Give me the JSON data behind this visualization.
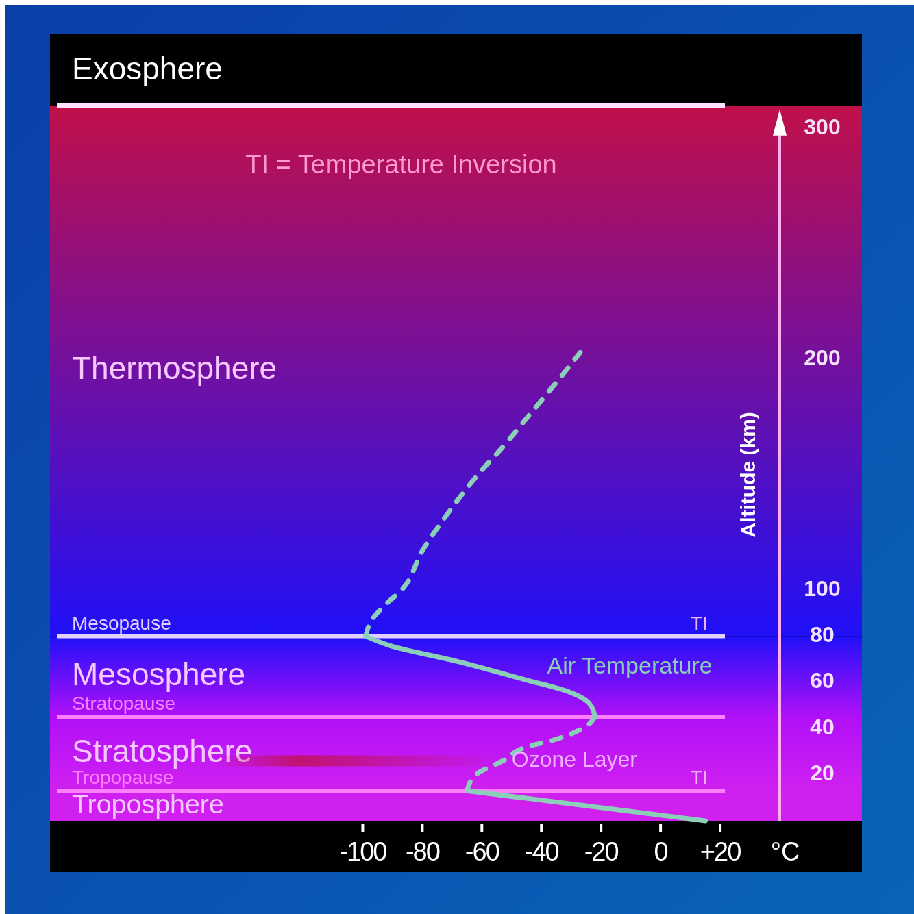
{
  "chart_data": {
    "type": "line",
    "xlabel": "°C",
    "ylabel": "Altitude (km)",
    "xlim": [
      -205,
      40
    ],
    "xticks": [
      -100,
      -80,
      -60,
      -40,
      -20,
      0,
      {
        "value": 20,
        "label": "+20"
      }
    ],
    "ylim": [
      0,
      340
    ],
    "yticks": [
      20,
      40,
      60,
      80,
      100,
      200,
      300
    ],
    "series": [
      {
        "color": "#8ccfb8",
        "line_style": "solid",
        "x": [
          15,
          -65
        ],
        "values": [
          0,
          13
        ]
      },
      {
        "color": "#8ccfb8",
        "line_style": "dashed",
        "x": [
          -65,
          -62,
          -53,
          -45,
          -36,
          -25,
          -22
        ],
        "values": [
          13,
          20,
          26,
          32,
          35,
          41,
          45
        ]
      },
      {
        "name": "Air Temperature",
        "color": "#8ccfb8",
        "line_style": "solid",
        "x": [
          -22,
          -24,
          -31,
          -45,
          -68,
          -91,
          -99
        ],
        "values": [
          45,
          51,
          56,
          61,
          69,
          76,
          80
        ]
      },
      {
        "color": "#8ccfb8",
        "line_style": "dashed",
        "x": [
          -99,
          -97,
          -93,
          -87,
          -80,
          -71,
          -62,
          -53,
          -44,
          -35,
          -27
        ],
        "values": [
          80,
          87,
          93,
          100,
          117,
          134,
          149,
          162,
          176,
          190,
          203
        ]
      }
    ],
    "bands": [
      {
        "axis": "y",
        "from": 0,
        "to": 13,
        "label": "Troposphere",
        "color": "#d020f0"
      },
      {
        "axis": "y",
        "from": 13,
        "to": 45,
        "label": "Stratosphere",
        "color": "#b010f8"
      },
      {
        "axis": "y",
        "from": 45,
        "to": 80,
        "label": "Mesosphere",
        "color": "#2010f8"
      },
      {
        "axis": "y",
        "from": 80,
        "to": 310,
        "label": "Thermosphere",
        "color": "#c0104a"
      },
      {
        "axis": "y",
        "from": 310,
        "to": 340,
        "label": "Exosphere",
        "color": "#000000"
      }
    ],
    "ref_lines": [
      {
        "axis": "y",
        "value": 13,
        "label": "Tropopause",
        "color": "#ff80ff"
      },
      {
        "axis": "y",
        "value": 45,
        "label": "Stratopause",
        "color": "#ff80ff"
      },
      {
        "axis": "y",
        "value": 80,
        "label": "Mesopause",
        "color": "#e0d0ff"
      },
      {
        "axis": "y",
        "value": 310,
        "label": null,
        "color": "#ffe0ff"
      }
    ],
    "annotations": [
      "TI = Temperature Inversion",
      {
        "text": "TI",
        "x": 13,
        "y": 13
      },
      {
        "text": "TI",
        "x": 13,
        "y": 80
      },
      "Ozone Layer"
    ]
  }
}
